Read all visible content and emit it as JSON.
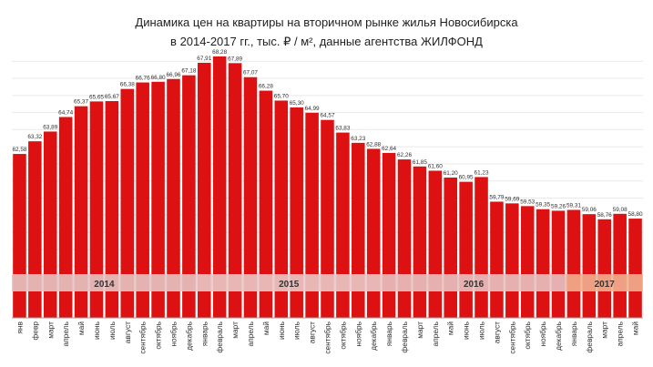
{
  "chart_data": {
    "type": "bar",
    "title_line1": "Динамика цен на квартиры на вторичном рынке жилья Новосибирска",
    "title_line2": "в 2014-2017 гг., тыс. ₽ / м², данные агентства ЖИЛФОНД",
    "categories": [
      "янв",
      "февр",
      "март",
      "апрель",
      "май",
      "июнь",
      "июль",
      "август",
      "сентябрь",
      "октябрь",
      "ноябрь",
      "декабрь",
      "январь",
      "февраль",
      "март",
      "апрель",
      "май",
      "июнь",
      "июль",
      "август",
      "сентябрь",
      "октябрь",
      "ноябрь",
      "декабрь",
      "январь",
      "февраль",
      "март",
      "апрель",
      "май",
      "июнь",
      "июль",
      "август",
      "сентябрь",
      "октябрь",
      "ноябрь",
      "декабрь",
      "январь",
      "февраль",
      "март",
      "апрель",
      "май"
    ],
    "value_labels": [
      "62,58",
      "63,32",
      "63,89",
      "64,74",
      "65,37",
      "65,65",
      "65,67",
      "66,38",
      "66,76",
      "66,80",
      "66,96",
      "67,18",
      "67,91",
      "68,28",
      "67,89",
      "67,07",
      "66,28",
      "65,70",
      "65,30",
      "64,99",
      "64,57",
      "63,83",
      "63,23",
      "62,88",
      "62,64",
      "62,26",
      "61,85",
      "61,60",
      "61,20",
      "60,95",
      "61,23",
      "59,79",
      "59,69",
      "59,53",
      "59,35",
      "59,26",
      "59,31",
      "59,06",
      "58,76",
      "59,08",
      "58,80"
    ],
    "values": [
      62.58,
      63.32,
      63.89,
      64.74,
      65.37,
      65.65,
      65.67,
      66.38,
      66.76,
      66.8,
      66.96,
      67.18,
      67.91,
      68.28,
      67.89,
      67.07,
      66.28,
      65.7,
      65.3,
      64.99,
      64.57,
      63.83,
      63.23,
      62.88,
      62.64,
      62.26,
      61.85,
      61.6,
      61.2,
      60.95,
      61.23,
      59.79,
      59.69,
      59.53,
      59.35,
      59.26,
      59.31,
      59.06,
      58.76,
      59.08,
      58.8
    ],
    "years": [
      {
        "label": "2014",
        "start": 0,
        "end": 11
      },
      {
        "label": "2015",
        "start": 12,
        "end": 23
      },
      {
        "label": "2016",
        "start": 24,
        "end": 35
      },
      {
        "label": "2017",
        "start": 36,
        "end": 40
      }
    ],
    "bar_color": "#dd1111",
    "bar_color_dark": "#b00a0a",
    "band_colors": [
      "#e6c4c4",
      "#eac9c9",
      "#e8c2c2",
      "#f2b08f"
    ],
    "grid": true
  }
}
